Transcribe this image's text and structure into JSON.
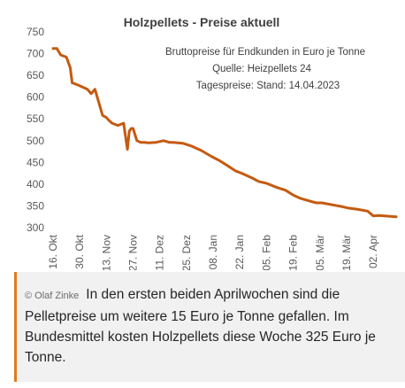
{
  "chart_data": {
    "type": "line",
    "title": "Holzpellets - Preise aktuell",
    "annotations": [
      "Bruttopreise für Endkunden in Euro je Tonne",
      "Quelle: Heizpellets 24",
      "Tagespreise: Stand: 14.04.2023"
    ],
    "xlabel": "",
    "ylabel": "",
    "ylim": [
      300,
      750
    ],
    "y_ticks": [
      300,
      350,
      400,
      450,
      500,
      550,
      600,
      650,
      700,
      750
    ],
    "x_tick_labels": [
      "16. Okt",
      "30. Okt",
      "13. Nov",
      "27. Nov",
      "11. Dez",
      "25. Dez",
      "08. Jan",
      "22. Jan",
      "05. Feb",
      "19. Feb",
      "05. Mär",
      "19. Mär",
      "02. Apr"
    ],
    "grid": false,
    "line_color": "#c55a11",
    "x_start": "2022-10-16",
    "x_end": "2023-04-14",
    "series": [
      {
        "x": [
          "2022-10-16",
          "2022-10-18",
          "2022-10-20",
          "2022-10-23",
          "2022-10-25",
          "2022-10-26",
          "2022-10-29",
          "2022-11-03",
          "2022-11-05",
          "2022-11-07",
          "2022-11-11",
          "2022-11-13",
          "2022-11-14",
          "2022-11-16",
          "2022-11-19",
          "2022-11-22",
          "2022-11-24",
          "2022-11-25",
          "2022-11-26",
          "2022-11-27",
          "2022-11-29",
          "2022-12-01",
          "2022-12-03",
          "2022-12-05",
          "2022-12-09",
          "2022-12-13",
          "2022-12-16",
          "2022-12-18",
          "2022-12-23",
          "2022-12-28",
          "2023-01-02",
          "2023-01-05",
          "2023-01-07",
          "2023-01-11",
          "2023-01-15",
          "2023-01-20",
          "2023-01-23",
          "2023-01-28",
          "2023-02-01",
          "2023-02-05",
          "2023-02-10",
          "2023-02-15",
          "2023-02-19",
          "2023-02-23",
          "2023-02-27",
          "2023-03-03",
          "2023-03-06",
          "2023-03-11",
          "2023-03-17",
          "2023-03-20",
          "2023-03-25",
          "2023-03-30",
          "2023-04-02",
          "2023-04-05",
          "2023-04-14"
        ],
        "values": [
          712,
          712,
          697,
          692,
          668,
          633,
          628,
          618,
          608,
          618,
          558,
          553,
          548,
          540,
          535,
          540,
          480,
          522,
          528,
          528,
          500,
          496,
          496,
          495,
          496,
          500,
          496,
          496,
          494,
          487,
          477,
          469,
          464,
          455,
          444,
          430,
          425,
          415,
          406,
          402,
          393,
          386,
          375,
          367,
          362,
          357,
          357,
          353,
          348,
          345,
          342,
          338,
          327,
          328,
          325
        ]
      }
    ]
  },
  "caption": {
    "credit": "© Olaf Zinke",
    "text": "In den ersten beiden Aprilwochen sind die Pelletpreise um weitere 15 Euro je Tonne gefallen. Im Bundesmittel kosten Holzpellets diese Woche 325 Euro je Tonne."
  }
}
